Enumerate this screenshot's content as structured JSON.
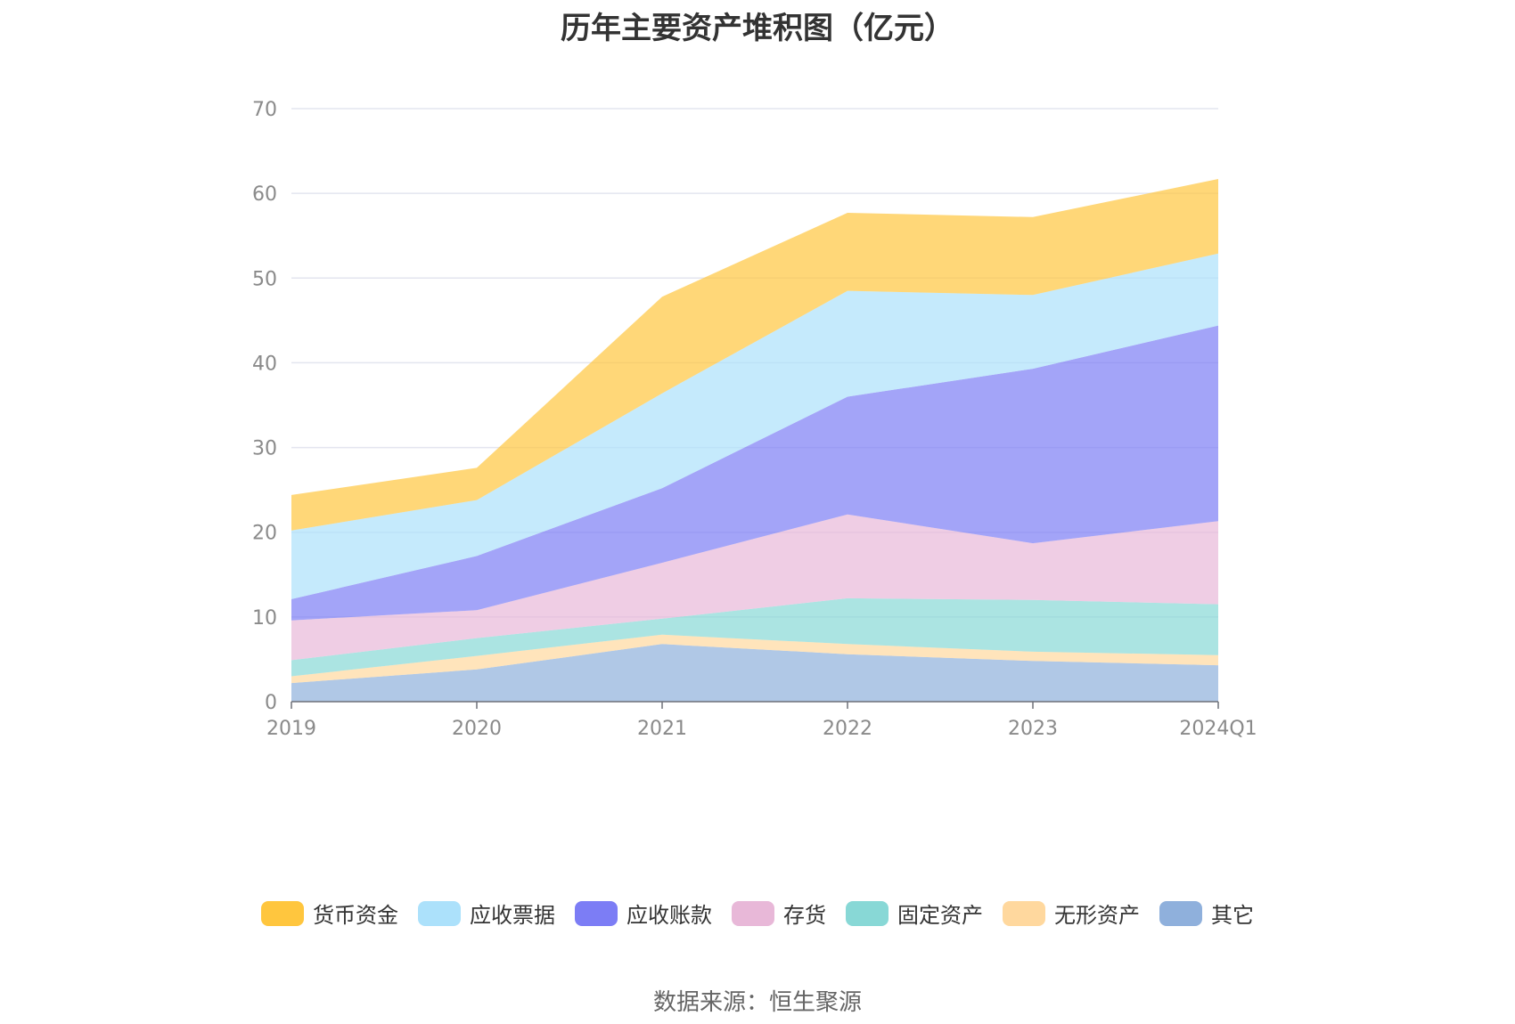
{
  "chart_data": {
    "type": "area",
    "title": "历年主要资产堆积图（亿元）",
    "stacked": true,
    "categories": [
      "2019",
      "2020",
      "2021",
      "2022",
      "2023",
      "2024Q1"
    ],
    "ylim": [
      0,
      70
    ],
    "yticks": [
      0,
      10,
      20,
      30,
      40,
      50,
      60,
      70
    ],
    "grid": true,
    "legend_position": "bottom",
    "series": [
      {
        "name": "其它",
        "color": "#8fb0dc",
        "values": [
          2.2,
          3.8,
          6.8,
          5.6,
          4.8,
          4.3
        ]
      },
      {
        "name": "无形资产",
        "color": "#ffd89e",
        "values": [
          0.8,
          1.6,
          1.1,
          1.2,
          1.1,
          1.2
        ]
      },
      {
        "name": "固定资产",
        "color": "#88d8d6",
        "values": [
          1.9,
          2.1,
          1.9,
          5.4,
          6.1,
          6.0
        ]
      },
      {
        "name": "存货",
        "color": "#e8b8d8",
        "values": [
          4.7,
          3.3,
          6.6,
          9.9,
          6.7,
          9.8
        ]
      },
      {
        "name": "应收账款",
        "color": "#7c7df5",
        "values": [
          2.5,
          6.4,
          8.8,
          13.9,
          20.6,
          23.1
        ]
      },
      {
        "name": "应收票据",
        "color": "#ace1fb",
        "values": [
          8.1,
          6.6,
          11.2,
          12.5,
          8.7,
          8.5
        ]
      },
      {
        "name": "货币资金",
        "color": "#ffc63e",
        "values": [
          4.2,
          3.8,
          11.4,
          9.2,
          9.2,
          8.8
        ]
      }
    ],
    "legend_order": [
      "货币资金",
      "应收票据",
      "应收账款",
      "存货",
      "固定资产",
      "无形资产",
      "其它"
    ]
  },
  "source_note": "数据来源：恒生聚源"
}
